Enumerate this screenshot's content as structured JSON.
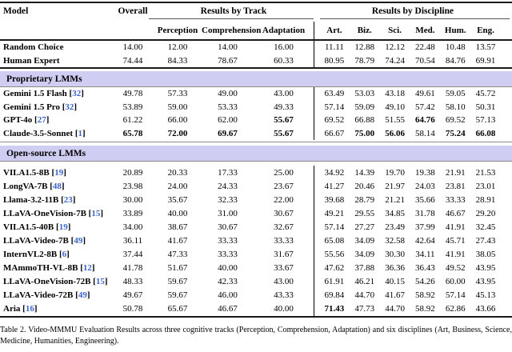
{
  "colors": {
    "band_bg": "#cfcdf2",
    "cite_blue": "#3a66c9",
    "rule_dark": "#1a1a1a",
    "rule_gray": "#8a8a8a"
  },
  "table": {
    "header": {
      "model": "Model",
      "overall": "Overall",
      "track_group": "Results by Track",
      "discipline_group": "Results by Discipline",
      "track_cols": [
        "Perception",
        "Comprehension",
        "Adaptation"
      ],
      "discipline_cols": [
        "Art.",
        "Biz.",
        "Sci.",
        "Med.",
        "Hum.",
        "Eng."
      ]
    },
    "bands": [
      {
        "label": "Proprietary LMMs"
      },
      {
        "label": "Open-source LMMs"
      }
    ],
    "row_groups": {
      "baseline": [
        {
          "model": "Random Choice",
          "cite": null,
          "values": [
            "14.00",
            "12.00",
            "14.00",
            "16.00",
            "11.11",
            "12.88",
            "12.12",
            "22.48",
            "10.48",
            "13.57"
          ],
          "bold": []
        },
        {
          "model": "Human Expert",
          "cite": null,
          "values": [
            "74.44",
            "84.33",
            "78.67",
            "60.33",
            "80.95",
            "78.79",
            "74.24",
            "70.54",
            "84.76",
            "69.91"
          ],
          "bold": []
        }
      ],
      "proprietary": [
        {
          "model": "Gemini 1.5 Flash",
          "cite": "32",
          "values": [
            "49.78",
            "57.33",
            "49.00",
            "43.00",
            "63.49",
            "53.03",
            "43.18",
            "49.61",
            "59.05",
            "45.72"
          ],
          "bold": []
        },
        {
          "model": "Gemini 1.5 Pro",
          "cite": "32",
          "values": [
            "53.89",
            "59.00",
            "53.33",
            "49.33",
            "57.14",
            "59.09",
            "49.10",
            "57.42",
            "58.10",
            "50.31"
          ],
          "bold": []
        },
        {
          "model": "GPT-4o",
          "cite": "27",
          "values": [
            "61.22",
            "66.00",
            "62.00",
            "55.67",
            "69.52",
            "66.88",
            "51.55",
            "64.76",
            "69.52",
            "57.13"
          ],
          "bold": [
            3,
            7
          ]
        },
        {
          "model": "Claude-3.5-Sonnet",
          "cite": "1",
          "values": [
            "65.78",
            "72.00",
            "69.67",
            "55.67",
            "66.67",
            "75.00",
            "56.06",
            "58.14",
            "75.24",
            "66.08"
          ],
          "bold": [
            0,
            1,
            2,
            3,
            5,
            6,
            8,
            9
          ]
        }
      ],
      "open_source": [
        {
          "model": "VILA1.5-8B",
          "cite": "19",
          "values": [
            "20.89",
            "20.33",
            "17.33",
            "25.00",
            "34.92",
            "14.39",
            "19.70",
            "19.38",
            "21.91",
            "21.53"
          ],
          "bold": []
        },
        {
          "model": "LongVA-7B",
          "cite": "48",
          "values": [
            "23.98",
            "24.00",
            "24.33",
            "23.67",
            "41.27",
            "20.46",
            "21.97",
            "24.03",
            "23.81",
            "23.01"
          ],
          "bold": []
        },
        {
          "model": "Llama-3.2-11B",
          "cite": "23",
          "values": [
            "30.00",
            "35.67",
            "32.33",
            "22.00",
            "39.68",
            "28.79",
            "21.21",
            "35.66",
            "33.33",
            "28.91"
          ],
          "bold": []
        },
        {
          "model": "LLaVA-OneVision-7B",
          "cite": "15",
          "values": [
            "33.89",
            "40.00",
            "31.00",
            "30.67",
            "49.21",
            "29.55",
            "34.85",
            "31.78",
            "46.67",
            "29.20"
          ],
          "bold": []
        },
        {
          "model": "VILA1.5-40B",
          "cite": "19",
          "values": [
            "34.00",
            "38.67",
            "30.67",
            "32.67",
            "57.14",
            "27.27",
            "23.49",
            "37.99",
            "41.91",
            "32.45"
          ],
          "bold": []
        },
        {
          "model": "LLaVA-Video-7B",
          "cite": "49",
          "values": [
            "36.11",
            "41.67",
            "33.33",
            "33.33",
            "65.08",
            "34.09",
            "32.58",
            "42.64",
            "45.71",
            "27.43"
          ],
          "bold": []
        },
        {
          "model": "InternVL2-8B",
          "cite": "6",
          "values": [
            "37.44",
            "47.33",
            "33.33",
            "31.67",
            "55.56",
            "34.09",
            "30.30",
            "34.11",
            "41.91",
            "38.05"
          ],
          "bold": []
        },
        {
          "model": "MAmmoTH-VL-8B",
          "cite": "12",
          "values": [
            "41.78",
            "51.67",
            "40.00",
            "33.67",
            "47.62",
            "37.88",
            "36.36",
            "36.43",
            "49.52",
            "43.95"
          ],
          "bold": []
        },
        {
          "model": "LLaVA-OneVision-72B",
          "cite": "15",
          "values": [
            "48.33",
            "59.67",
            "42.33",
            "43.00",
            "61.91",
            "46.21",
            "40.15",
            "54.26",
            "60.00",
            "43.95"
          ],
          "bold": []
        },
        {
          "model": "LLaVA-Video-72B",
          "cite": "49",
          "values": [
            "49.67",
            "59.67",
            "46.00",
            "43.33",
            "69.84",
            "44.70",
            "41.67",
            "58.92",
            "57.14",
            "45.13"
          ],
          "bold": []
        },
        {
          "model": "Aria",
          "cite": "16",
          "values": [
            "50.78",
            "65.67",
            "46.67",
            "40.00",
            "71.43",
            "47.73",
            "44.70",
            "58.92",
            "62.86",
            "43.66"
          ],
          "bold": [
            4
          ]
        }
      ]
    }
  },
  "caption": "Table 2. Video-MMMU Evaluation Results across three cognitive tracks (Perception, Comprehension, Adaptation) and six disciplines (Art, Business, Science, Medicine, Humanities, Engineering)."
}
